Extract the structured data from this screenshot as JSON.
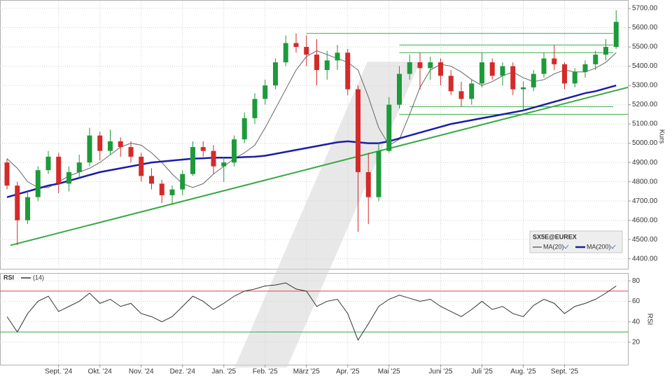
{
  "chart_data": [
    {
      "type": "candlestick",
      "legend_title": "SX5E@EUREX",
      "y_label": "Kurs",
      "categories": [
        null,
        null,
        null,
        null,
        null,
        "Sept. '24",
        null,
        null,
        null,
        "Okt. '24",
        null,
        null,
        null,
        "Nov. '24",
        null,
        null,
        null,
        "Dez. '24",
        null,
        null,
        null,
        "Jan. '25",
        null,
        null,
        null,
        "Feb. '25",
        null,
        null,
        null,
        "März '25",
        null,
        null,
        null,
        "Apr. '25",
        null,
        null,
        null,
        "Mai '25",
        null,
        null,
        null,
        null,
        "Juni '25",
        null,
        null,
        null,
        "Juli '25",
        null,
        null,
        null,
        "Aug. '25",
        null,
        null,
        null,
        "Sept. '25",
        null,
        null,
        null,
        null,
        null
      ],
      "open": [
        4900,
        4780,
        4600,
        4720,
        4860,
        4930,
        4790,
        4850,
        4900,
        5040,
        4960,
        5010,
        4980,
        4930,
        4830,
        4790,
        4730,
        4760,
        4840,
        4980,
        4960,
        4880,
        4900,
        5020,
        5130,
        5230,
        5300,
        5420,
        5520,
        5500,
        5460,
        5380,
        5430,
        5470,
        5280,
        4850,
        4720,
        4960,
        5200,
        5360,
        5420,
        5390,
        5420,
        5350,
        5270,
        5230,
        5310,
        5420,
        5350,
        5400,
        5280,
        5290,
        5360,
        5440,
        5410,
        5310,
        5370,
        5410,
        5460,
        5500
      ],
      "high": [
        4920,
        4800,
        4750,
        4880,
        4960,
        4950,
        4880,
        4940,
        5080,
        5060,
        5070,
        5030,
        5010,
        4950,
        4870,
        4810,
        4780,
        4860,
        5010,
        5010,
        4990,
        4930,
        5040,
        5160,
        5260,
        5330,
        5440,
        5560,
        5570,
        5560,
        5540,
        5480,
        5510,
        5490,
        5300,
        4950,
        5000,
        5240,
        5400,
        5460,
        5470,
        5450,
        5440,
        5380,
        5320,
        5330,
        5470,
        5440,
        5420,
        5420,
        5320,
        5380,
        5470,
        5510,
        5420,
        5390,
        5430,
        5480,
        5540,
        5690
      ],
      "low": [
        4760,
        4470,
        4580,
        4700,
        4840,
        4740,
        4750,
        4820,
        4880,
        4910,
        4940,
        4930,
        4900,
        4800,
        4760,
        4690,
        4680,
        4730,
        4830,
        4930,
        4840,
        4800,
        4880,
        5000,
        5100,
        5200,
        5280,
        5400,
        5470,
        5400,
        5300,
        5330,
        5380,
        5250,
        4540,
        4580,
        4700,
        4950,
        5180,
        5330,
        5280,
        5330,
        5300,
        5250,
        5190,
        5200,
        5290,
        5330,
        5300,
        5250,
        5170,
        5270,
        5340,
        5380,
        5280,
        5290,
        5340,
        5380,
        5430,
        5490
      ],
      "close": [
        4780,
        4600,
        4720,
        4860,
        4930,
        4790,
        4850,
        4900,
        5040,
        4960,
        5010,
        4980,
        4930,
        4830,
        4790,
        4730,
        4760,
        4840,
        4980,
        4960,
        4880,
        4900,
        5020,
        5130,
        5230,
        5300,
        5420,
        5520,
        5500,
        5460,
        5380,
        5430,
        5470,
        5280,
        4850,
        4720,
        4960,
        5200,
        5360,
        5420,
        5390,
        5420,
        5350,
        5270,
        5230,
        5310,
        5420,
        5350,
        5400,
        5280,
        5290,
        5360,
        5440,
        5410,
        5310,
        5370,
        5410,
        5460,
        5500,
        5630
      ],
      "color_up": "#1e9a3a",
      "color_down": "#d42a2a",
      "series": [
        {
          "name": "MA(20)",
          "color": "#666666",
          "values": [
            4920,
            4870,
            4800,
            4770,
            4770,
            4800,
            4830,
            4850,
            4870,
            4900,
            4940,
            4980,
            5000,
            4990,
            4950,
            4900,
            4840,
            4790,
            4770,
            4790,
            4840,
            4880,
            4920,
            4950,
            4990,
            5080,
            5180,
            5280,
            5380,
            5450,
            5480,
            5460,
            5440,
            5420,
            5380,
            5240,
            5080,
            4990,
            5020,
            5150,
            5290,
            5380,
            5410,
            5400,
            5370,
            5330,
            5300,
            5320,
            5350,
            5370,
            5340,
            5320,
            5330,
            5360,
            5380,
            5370,
            5370,
            5390,
            5420,
            5470
          ]
        },
        {
          "name": "MA(200)",
          "color": "#1c1ca8",
          "values": [
            4720,
            4735,
            4750,
            4765,
            4780,
            4790,
            4805,
            4820,
            4835,
            4850,
            4860,
            4870,
            4880,
            4890,
            4900,
            4905,
            4910,
            4915,
            4920,
            4922,
            4925,
            4925,
            4925,
            4928,
            4930,
            4935,
            4945,
            4955,
            4965,
            4975,
            4985,
            4995,
            5005,
            5010,
            5005,
            5000,
            5000,
            5010,
            5025,
            5040,
            5055,
            5070,
            5085,
            5100,
            5110,
            5120,
            5130,
            5140,
            5150,
            5160,
            5170,
            5185,
            5200,
            5215,
            5230,
            5245,
            5260,
            5270,
            5285,
            5300
          ]
        }
      ],
      "levels": [
        5570,
        5510,
        5470,
        5190,
        5150
      ],
      "level_color": "#3aa845",
      "trendline": [
        4470,
        5290
      ],
      "ylim": [
        4348,
        5740
      ],
      "yticks": [
        {
          "value": 4400,
          "label": "4400.00"
        },
        {
          "value": 4500,
          "label": "4500.00"
        },
        {
          "value": 4600,
          "label": "4600.00"
        },
        {
          "value": 4700,
          "label": "4700.00"
        },
        {
          "value": 4800,
          "label": "4800.00"
        },
        {
          "value": 4900,
          "label": "4900.00"
        },
        {
          "value": 5000,
          "label": "5000.00"
        },
        {
          "value": 5100,
          "label": "5100.00"
        },
        {
          "value": 5200,
          "label": "5200.00"
        },
        {
          "value": 5300,
          "label": "5300.00"
        },
        {
          "value": 5400,
          "label": "5400.00"
        },
        {
          "value": 5500,
          "label": "5500.00"
        },
        {
          "value": 5600,
          "label": "5600.00"
        },
        {
          "value": 5700,
          "label": "5700.00"
        }
      ],
      "grid": true,
      "legend_position": "bottom-right"
    },
    {
      "type": "line",
      "title": "RSI",
      "y_label": "RSI",
      "series": [
        {
          "name": "(14)",
          "color": "#333333",
          "values": [
            45,
            30,
            48,
            60,
            65,
            50,
            55,
            60,
            68,
            58,
            62,
            55,
            58,
            48,
            45,
            40,
            45,
            55,
            65,
            60,
            52,
            58,
            65,
            70,
            72,
            75,
            76,
            78,
            72,
            70,
            55,
            60,
            62,
            48,
            22,
            38,
            55,
            62,
            66,
            63,
            60,
            62,
            55,
            50,
            45,
            52,
            60,
            52,
            55,
            48,
            45,
            56,
            62,
            58,
            48,
            55,
            58,
            62,
            68,
            75
          ]
        }
      ],
      "levels": [
        {
          "value": 70,
          "color": "#e04040"
        },
        {
          "value": 30,
          "color": "#3aa845"
        }
      ],
      "ylim": [
        -2,
        87
      ],
      "yticks": [
        20,
        40,
        60,
        80
      ],
      "grid": true,
      "legend_position": "top-left"
    }
  ]
}
